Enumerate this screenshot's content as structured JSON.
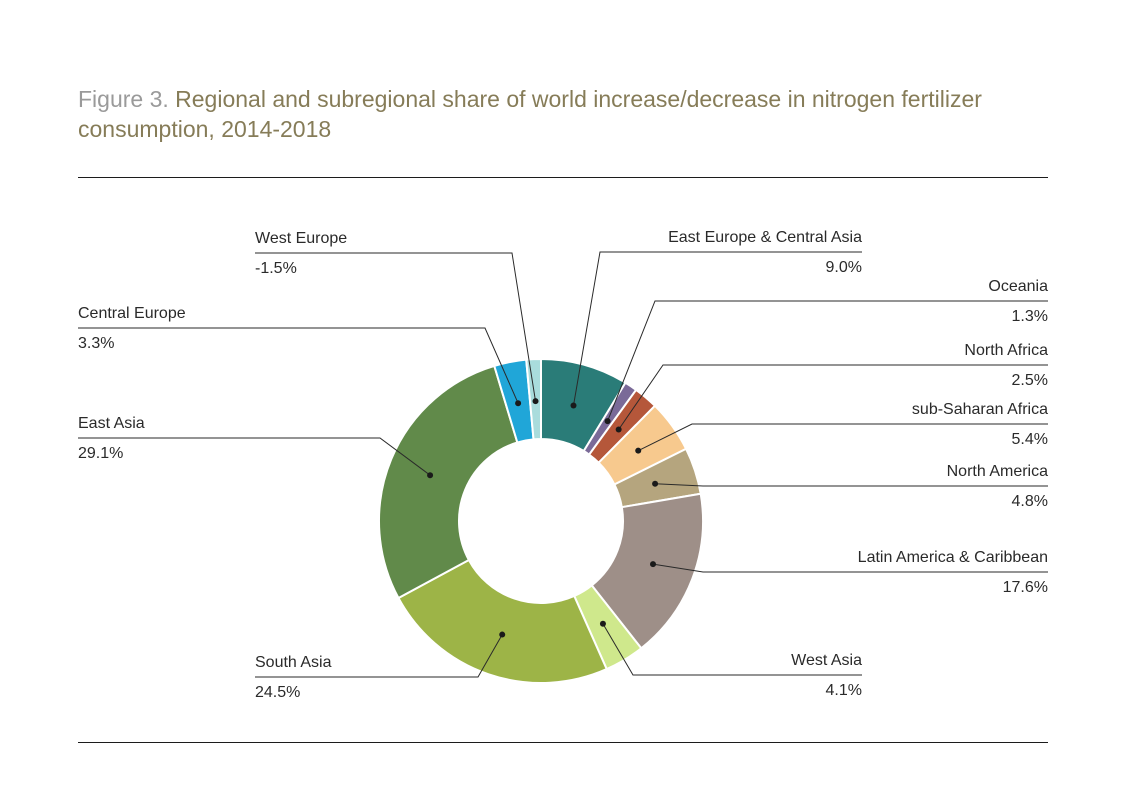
{
  "figure": {
    "title_prefix": "Figure 3.",
    "title_text": " Regional and subregional share of world increase/decrease in nitrogen fertilizer consumption, 2014-2018"
  },
  "chart_data": {
    "type": "pie",
    "variant": "donut",
    "title": "Figure 3. Regional and subregional share of world increase/decrease in nitrogen fertilizer consumption, 2014-2018",
    "unit": "%",
    "slices": [
      {
        "name": "East Europe & Central Asia",
        "value": 9.0,
        "label": "9.0%",
        "color": "#2a7c78"
      },
      {
        "name": "Oceania",
        "value": 1.3,
        "label": "1.3%",
        "color": "#7a6a98"
      },
      {
        "name": "North Africa",
        "value": 2.5,
        "label": "2.5%",
        "color": "#b5573a"
      },
      {
        "name": "sub-Saharan Africa",
        "value": 5.4,
        "label": "5.4%",
        "color": "#f7c98e"
      },
      {
        "name": "North America",
        "value": 4.8,
        "label": "4.8%",
        "color": "#b5a57e"
      },
      {
        "name": "Latin America & Caribbean",
        "value": 17.6,
        "label": "17.6%",
        "color": "#9e8f88"
      },
      {
        "name": "West Asia",
        "value": 4.1,
        "label": "4.1%",
        "color": "#cfe88c"
      },
      {
        "name": "South Asia",
        "value": 24.5,
        "label": "24.5%",
        "color": "#9db447"
      },
      {
        "name": "East Asia",
        "value": 29.1,
        "label": "29.1%",
        "color": "#618a4a"
      },
      {
        "name": "Central Europe",
        "value": 3.3,
        "label": "3.3%",
        "color": "#20a6d8"
      },
      {
        "name": "West Europe",
        "value": -1.5,
        "label": "-1.5%",
        "color": "#a9dcdc"
      }
    ]
  }
}
